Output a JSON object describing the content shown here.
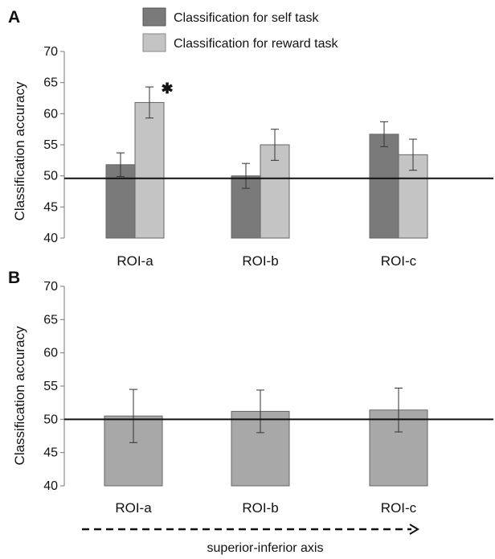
{
  "chart_data": [
    {
      "panel_label": "A",
      "type": "bar",
      "categories": [
        "ROI-a",
        "ROI-b",
        "ROI-c"
      ],
      "ylabel": "Classification accuracy",
      "ylim": [
        40,
        70
      ],
      "yticks": [
        40,
        45,
        50,
        55,
        60,
        65,
        70
      ],
      "chance_level": 49.6,
      "legend_position": "top",
      "series": [
        {
          "name": "Classification for self task",
          "color": "#7a7a7a",
          "values": [
            51.8,
            50.0,
            56.7
          ],
          "errors": [
            1.9,
            2.0,
            2.0
          ]
        },
        {
          "name": "Classification for reward task",
          "color": "#c4c4c4",
          "values": [
            61.8,
            55.0,
            53.4
          ],
          "errors": [
            2.5,
            2.5,
            2.5
          ]
        }
      ],
      "significance_marker": {
        "symbol": "✱",
        "category": "ROI-a",
        "series": 1
      }
    },
    {
      "panel_label": "B",
      "type": "bar",
      "categories": [
        "ROI-a",
        "ROI-b",
        "ROI-c"
      ],
      "ylabel": "Classification accuracy",
      "ylim": [
        40,
        70
      ],
      "yticks": [
        40,
        45,
        50,
        55,
        60,
        65,
        70
      ],
      "chance_level": 50.0,
      "series": [
        {
          "color": "#a8a8a8",
          "values": [
            50.5,
            51.2,
            51.4
          ],
          "errors": [
            4.0,
            3.2,
            3.3
          ]
        }
      ],
      "xcaption": "superior-inferior axis"
    }
  ]
}
